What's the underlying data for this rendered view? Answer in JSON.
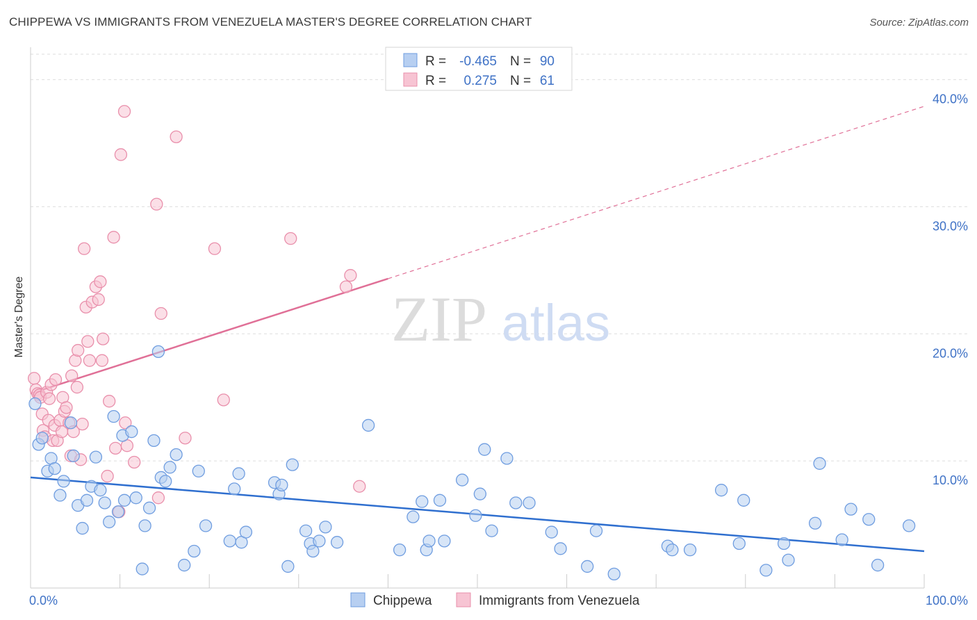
{
  "title": "CHIPPEWA VS IMMIGRANTS FROM VENEZUELA MASTER'S DEGREE CORRELATION CHART",
  "source": "Source: ZipAtlas.com",
  "watermark": {
    "zip": "ZIP",
    "atlas": "atlas"
  },
  "colors": {
    "blue_fill": "#b7cff1",
    "blue_stroke": "#6f9de0",
    "blue_line": "#2f6fcf",
    "pink_fill": "#f7c4d3",
    "pink_stroke": "#e98fab",
    "pink_line": "#e07097",
    "tick_text": "#3f72c6",
    "grid": "#dddddd"
  },
  "legend": {
    "rows": [
      {
        "r_label": "R =",
        "r_value": "-0.465",
        "n_label": "N =",
        "n_value": "90",
        "color": "blue"
      },
      {
        "r_label": "R =",
        "r_value": "0.275",
        "n_label": "N =",
        "n_value": "61",
        "color": "pink"
      }
    ]
  },
  "chart_data": {
    "type": "scatter",
    "title": "CHIPPEWA VS IMMIGRANTS FROM VENEZUELA MASTER'S DEGREE CORRELATION CHART",
    "xlabel": "",
    "ylabel": "Master's Degree",
    "xlim": [
      0,
      100
    ],
    "ylim": [
      0,
      42
    ],
    "x_ticks": [
      0,
      100
    ],
    "x_tick_labels": [
      "0.0%",
      "100.0%"
    ],
    "y_ticks": [
      10,
      20,
      30,
      40
    ],
    "y_tick_labels": [
      "10.0%",
      "20.0%",
      "30.0%",
      "40.0%"
    ],
    "grid": true,
    "legend_placement": "top-center",
    "series": [
      {
        "name": "Chippewa",
        "color": "blue",
        "trend": {
          "x": [
            0,
            100
          ],
          "y": [
            8.7,
            2.9
          ],
          "dashed_from": null
        },
        "points": [
          [
            0.5,
            14.5
          ],
          [
            0.9,
            11.3
          ],
          [
            1.3,
            11.8
          ],
          [
            1.9,
            9.2
          ],
          [
            2.3,
            10.2
          ],
          [
            2.7,
            9.4
          ],
          [
            3.3,
            7.3
          ],
          [
            3.7,
            8.4
          ],
          [
            4.5,
            13.0
          ],
          [
            4.8,
            10.4
          ],
          [
            5.3,
            6.5
          ],
          [
            5.8,
            4.7
          ],
          [
            6.3,
            6.9
          ],
          [
            6.8,
            8.0
          ],
          [
            7.3,
            10.3
          ],
          [
            7.8,
            7.7
          ],
          [
            8.3,
            6.7
          ],
          [
            8.8,
            5.2
          ],
          [
            9.3,
            13.5
          ],
          [
            9.8,
            6.0
          ],
          [
            10.3,
            12.0
          ],
          [
            10.5,
            6.9
          ],
          [
            11.3,
            12.3
          ],
          [
            11.8,
            7.1
          ],
          [
            12.5,
            1.5
          ],
          [
            12.8,
            4.9
          ],
          [
            13.3,
            6.3
          ],
          [
            13.8,
            11.6
          ],
          [
            14.3,
            18.6
          ],
          [
            14.6,
            8.7
          ],
          [
            15.1,
            8.4
          ],
          [
            15.6,
            9.5
          ],
          [
            16.3,
            10.5
          ],
          [
            17.2,
            1.8
          ],
          [
            18.3,
            2.9
          ],
          [
            18.8,
            9.2
          ],
          [
            19.6,
            4.9
          ],
          [
            22.3,
            3.7
          ],
          [
            22.8,
            7.8
          ],
          [
            23.3,
            9.0
          ],
          [
            23.6,
            3.6
          ],
          [
            24.1,
            4.4
          ],
          [
            27.3,
            8.3
          ],
          [
            27.8,
            7.4
          ],
          [
            28.1,
            8.1
          ],
          [
            28.8,
            1.7
          ],
          [
            29.3,
            9.7
          ],
          [
            30.8,
            4.5
          ],
          [
            31.3,
            3.5
          ],
          [
            31.6,
            2.9
          ],
          [
            32.3,
            3.7
          ],
          [
            33.0,
            4.8
          ],
          [
            34.3,
            3.6
          ],
          [
            37.8,
            12.8
          ],
          [
            41.3,
            3.0
          ],
          [
            42.8,
            5.6
          ],
          [
            43.8,
            6.8
          ],
          [
            44.3,
            3.0
          ],
          [
            44.6,
            3.7
          ],
          [
            45.8,
            6.9
          ],
          [
            46.3,
            3.7
          ],
          [
            48.3,
            8.5
          ],
          [
            49.8,
            5.7
          ],
          [
            50.3,
            7.4
          ],
          [
            50.8,
            10.9
          ],
          [
            51.6,
            4.5
          ],
          [
            53.3,
            10.2
          ],
          [
            54.3,
            6.7
          ],
          [
            55.8,
            6.7
          ],
          [
            58.3,
            4.4
          ],
          [
            59.3,
            3.1
          ],
          [
            62.3,
            1.7
          ],
          [
            63.3,
            4.5
          ],
          [
            65.3,
            1.1
          ],
          [
            71.3,
            3.3
          ],
          [
            71.8,
            3.0
          ],
          [
            73.8,
            3.0
          ],
          [
            77.3,
            7.7
          ],
          [
            79.3,
            3.5
          ],
          [
            79.8,
            6.9
          ],
          [
            82.3,
            1.4
          ],
          [
            84.3,
            3.5
          ],
          [
            84.8,
            2.2
          ],
          [
            87.8,
            5.1
          ],
          [
            88.3,
            9.8
          ],
          [
            90.8,
            3.8
          ],
          [
            91.8,
            6.2
          ],
          [
            93.8,
            5.4
          ],
          [
            94.8,
            1.8
          ],
          [
            98.3,
            4.9
          ]
        ]
      },
      {
        "name": "Immigrants from Venezuela",
        "color": "pink",
        "trend": {
          "x": [
            0,
            100
          ],
          "y": [
            15.3,
            37.9
          ],
          "dashed_from": 40
        },
        "points": [
          [
            0.4,
            16.5
          ],
          [
            0.6,
            15.6
          ],
          [
            0.8,
            15.3
          ],
          [
            1.0,
            15.2
          ],
          [
            1.1,
            15.0
          ],
          [
            1.3,
            13.7
          ],
          [
            1.4,
            12.4
          ],
          [
            1.6,
            11.9
          ],
          [
            1.8,
            15.4
          ],
          [
            2.0,
            13.2
          ],
          [
            2.1,
            14.9
          ],
          [
            2.3,
            16.0
          ],
          [
            2.5,
            11.6
          ],
          [
            2.7,
            12.8
          ],
          [
            2.8,
            16.4
          ],
          [
            3.0,
            11.6
          ],
          [
            3.3,
            13.2
          ],
          [
            3.5,
            12.3
          ],
          [
            3.6,
            15.0
          ],
          [
            3.8,
            13.9
          ],
          [
            4.0,
            14.2
          ],
          [
            4.3,
            13.0
          ],
          [
            4.5,
            10.4
          ],
          [
            4.6,
            16.7
          ],
          [
            4.8,
            12.3
          ],
          [
            5.0,
            17.9
          ],
          [
            5.2,
            15.8
          ],
          [
            5.3,
            18.7
          ],
          [
            5.6,
            10.1
          ],
          [
            5.8,
            12.9
          ],
          [
            6.0,
            26.7
          ],
          [
            6.2,
            22.1
          ],
          [
            6.4,
            19.4
          ],
          [
            6.6,
            17.9
          ],
          [
            6.9,
            22.5
          ],
          [
            7.3,
            23.7
          ],
          [
            7.6,
            22.7
          ],
          [
            7.8,
            24.1
          ],
          [
            8.0,
            17.9
          ],
          [
            8.1,
            19.6
          ],
          [
            8.6,
            8.8
          ],
          [
            8.8,
            14.7
          ],
          [
            9.3,
            27.6
          ],
          [
            9.5,
            11.0
          ],
          [
            9.9,
            6.0
          ],
          [
            10.1,
            34.1
          ],
          [
            10.5,
            37.5
          ],
          [
            10.6,
            13.0
          ],
          [
            10.8,
            11.2
          ],
          [
            11.6,
            9.9
          ],
          [
            14.1,
            30.2
          ],
          [
            14.3,
            7.1
          ],
          [
            14.6,
            21.6
          ],
          [
            16.3,
            35.5
          ],
          [
            17.3,
            11.8
          ],
          [
            20.6,
            26.7
          ],
          [
            21.6,
            14.8
          ],
          [
            29.1,
            27.5
          ],
          [
            35.3,
            23.7
          ],
          [
            35.8,
            24.6
          ],
          [
            36.8,
            8.0
          ]
        ]
      }
    ]
  }
}
